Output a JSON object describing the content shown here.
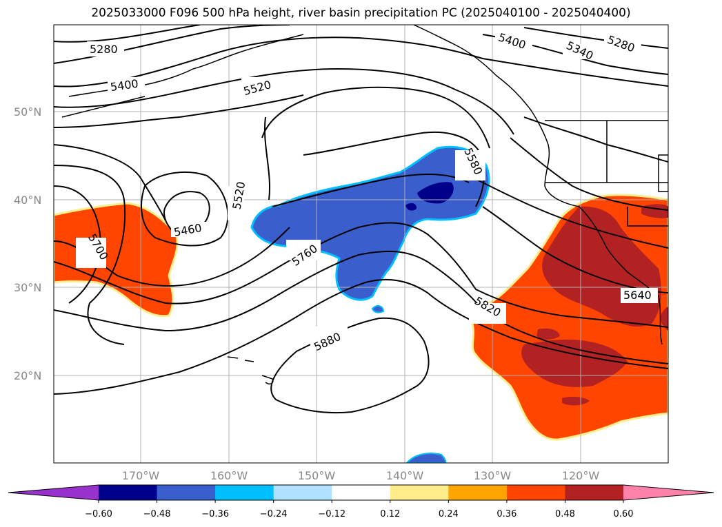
{
  "title": "2025033000 F096 500 hPa height, river basin precipitation PC (2025040100 - 2025040400)",
  "lat_labels": [
    "50°N",
    "40°N",
    "30°N",
    "20°N"
  ],
  "lon_labels": [
    "170°W",
    "160°W",
    "150°W",
    "140°W",
    "130°W",
    "120°W"
  ],
  "contour_labels": [
    "5280",
    "5340",
    "5400",
    "5460",
    "5520",
    "5580",
    "5640",
    "5700",
    "5760",
    "5820",
    "5880"
  ],
  "colorbar": {
    "colors": [
      "#9932CC",
      "#00008B",
      "#3A5FCD",
      "#00BFFF",
      "#B0E2FF",
      "#FFFFFF",
      "#FFEC8B",
      "#FFA500",
      "#FF4500",
      "#B22222",
      "#FF82AB"
    ],
    "tick_labels": [
      "−0.60",
      "−0.48",
      "−0.36",
      "−0.24",
      "−0.12",
      "0.12",
      "0.24",
      "0.36",
      "0.48",
      "0.60"
    ]
  },
  "fill_colors": {
    "positive": "#FF4500",
    "strong_positive": "#B22222",
    "negative": "#3A5FCD",
    "strong_negative": "#00008B",
    "edge_light_blue": "#00BFFF",
    "edge_yellow": "#FFEC8B"
  }
}
